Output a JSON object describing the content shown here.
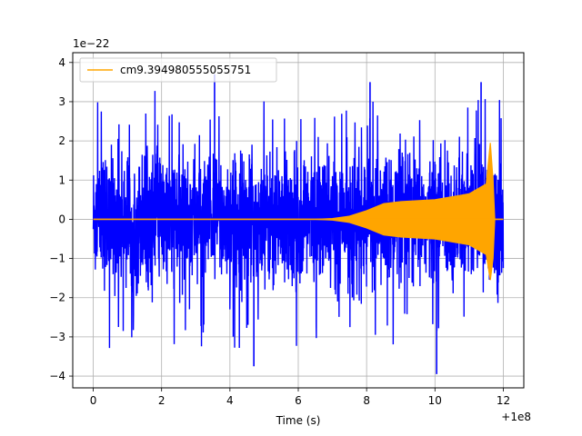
{
  "chart_data": {
    "type": "line",
    "title": "",
    "xlabel": "Time (s)",
    "ylabel": "",
    "x_offset_text": "+1e8",
    "y_scale_text": "1e−22",
    "xlim": [
      -0.6,
      12.6
    ],
    "ylim": [
      -4.3,
      4.25
    ],
    "x_ticks": [
      0,
      2,
      4,
      6,
      8,
      10,
      12
    ],
    "x_tick_labels": [
      "0",
      "2",
      "4",
      "6",
      "8",
      "10",
      "12"
    ],
    "y_ticks": [
      -4,
      -3,
      -2,
      -1,
      0,
      1,
      2,
      3,
      4
    ],
    "y_tick_labels": [
      "−4",
      "−3",
      "−2",
      "−1",
      "0",
      "1",
      "2",
      "3",
      "4"
    ],
    "grid": true,
    "legend": {
      "position": "top-left",
      "entries": [
        "cm9.394980555055751"
      ]
    },
    "series": [
      {
        "role": "noise",
        "color": "#0000ff",
        "x_range": [
          0,
          12
        ],
        "typical_amplitude": 1.3,
        "extreme_max": 3.7,
        "extreme_min": -3.95
      },
      {
        "name": "cm9.394980555055751",
        "role": "chirp",
        "color": "#ffa500",
        "envelope_x": [
          0,
          6.5,
          7.0,
          7.5,
          8.0,
          8.5,
          9.0,
          10.0,
          11.0,
          11.5,
          11.62,
          11.7,
          11.75,
          12.0
        ],
        "envelope_upper": [
          0,
          0,
          0.02,
          0.08,
          0.22,
          0.4,
          0.45,
          0.5,
          0.65,
          0.9,
          1.95,
          1.0,
          0,
          0
        ],
        "envelope_lower": [
          0,
          0,
          -0.02,
          -0.08,
          -0.22,
          -0.4,
          -0.45,
          -0.5,
          -0.65,
          -0.9,
          -1.55,
          -1.0,
          0,
          0
        ]
      }
    ]
  }
}
